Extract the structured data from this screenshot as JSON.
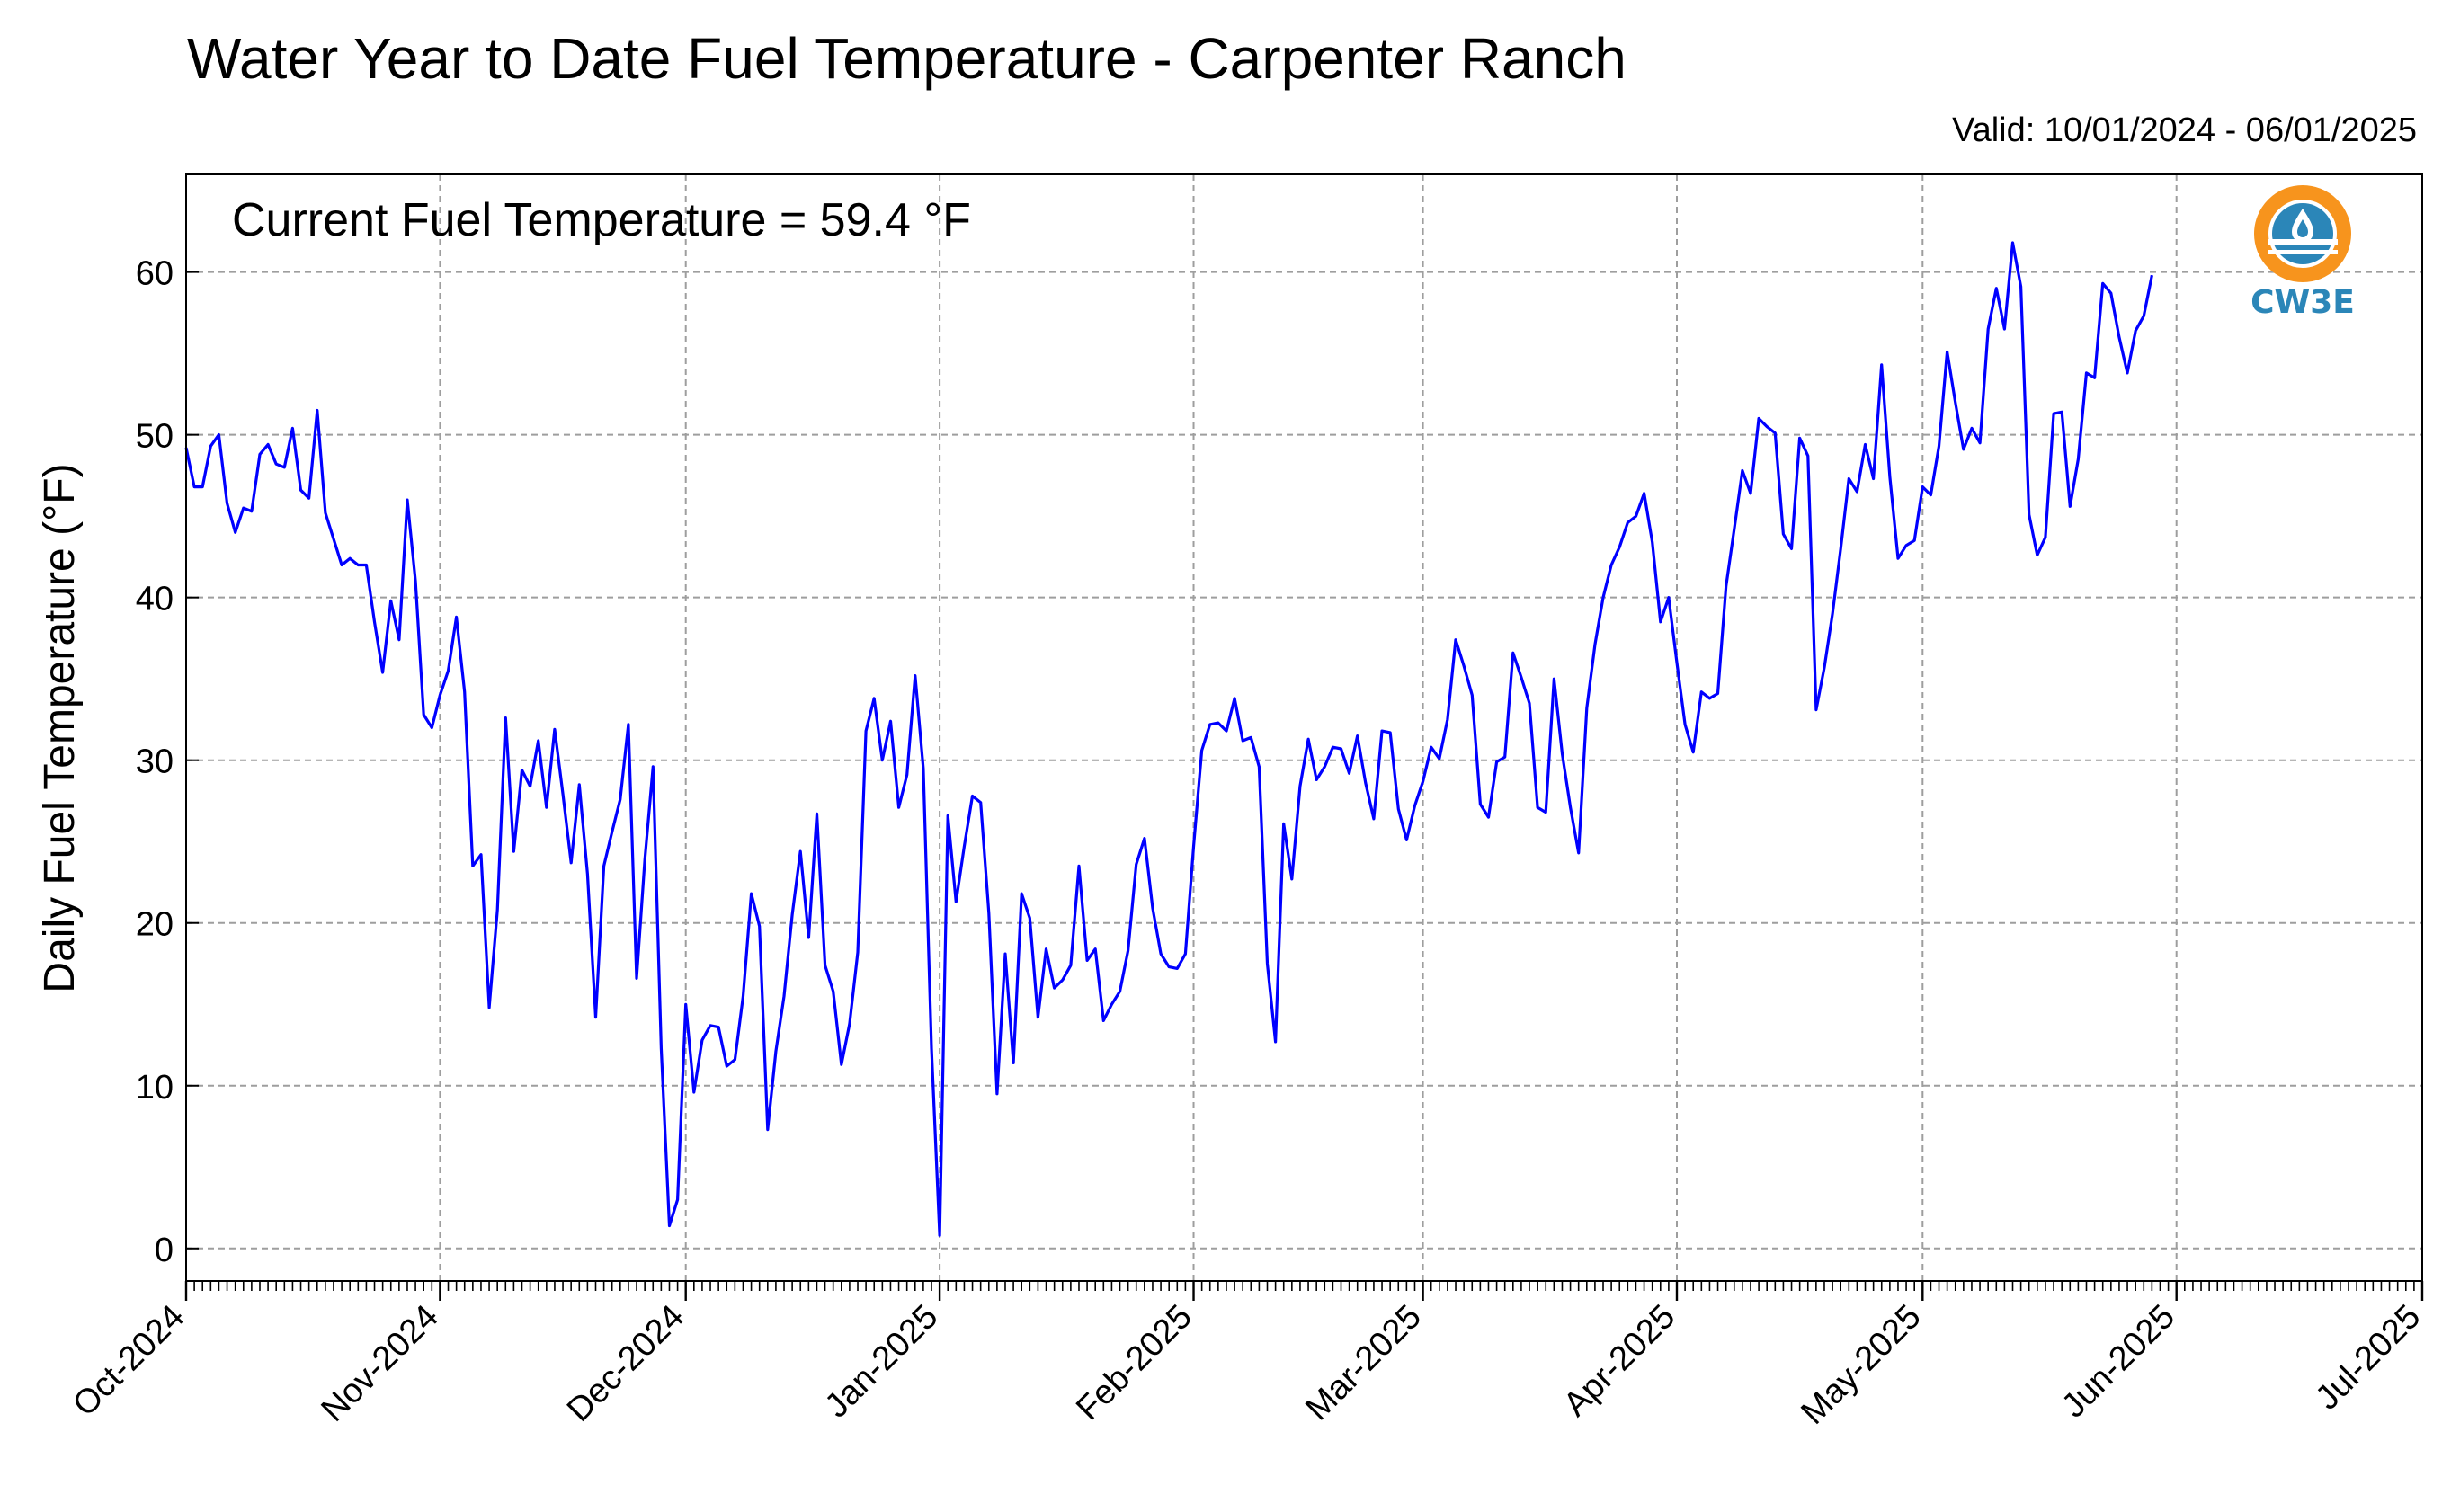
{
  "title": "Water Year to Date Fuel Temperature - Carpenter Ranch",
  "valid_label": "Valid: 10/01/2024 - 06/01/2025",
  "annotation": "Current Fuel Temperature = 59.4 °F",
  "logo": {
    "name": "cw3e-logo-icon",
    "text": "CW3E"
  },
  "colors": {
    "line": "#0000ff",
    "grid": "#9e9e9e",
    "logo_orange": "#f7941d",
    "logo_blue": "#2b86b8"
  },
  "chart_data": {
    "type": "line",
    "title": "Water Year to Date Fuel Temperature - Carpenter Ranch",
    "xlabel": "",
    "ylabel": "Daily Fuel Temperature (°F)",
    "xlim": [
      "2024-10-01",
      "2025-07-01"
    ],
    "ylim": [
      -2,
      66
    ],
    "yticks": [
      0,
      10,
      20,
      30,
      40,
      50,
      60
    ],
    "xticks": [
      {
        "date": "2024-10-01",
        "label": "Oct-2024"
      },
      {
        "date": "2024-11-01",
        "label": "Nov-2024"
      },
      {
        "date": "2024-12-01",
        "label": "Dec-2024"
      },
      {
        "date": "2025-01-01",
        "label": "Jan-2025"
      },
      {
        "date": "2025-02-01",
        "label": "Feb-2025"
      },
      {
        "date": "2025-03-01",
        "label": "Mar-2025"
      },
      {
        "date": "2025-04-01",
        "label": "Apr-2025"
      },
      {
        "date": "2025-05-01",
        "label": "May-2025"
      },
      {
        "date": "2025-06-01",
        "label": "Jun-2025"
      },
      {
        "date": "2025-07-01",
        "label": "Jul-2025"
      }
    ],
    "grid": true,
    "series": [
      {
        "start_date": "2024-10-01",
        "step": "1 day",
        "values": [
          49.2,
          46.8,
          46.8,
          49.3,
          50.0,
          45.8,
          44.0,
          45.5,
          45.3,
          48.8,
          49.4,
          48.2,
          48.0,
          50.4,
          46.6,
          46.1,
          51.5,
          45.2,
          43.6,
          42.0,
          42.4,
          42.0,
          42.0,
          38.5,
          35.4,
          39.8,
          37.4,
          46.0,
          41.0,
          32.8,
          32.0,
          34.0,
          35.5,
          38.8,
          34.2,
          23.5,
          24.2,
          14.8,
          20.8,
          32.6,
          24.4,
          29.4,
          28.4,
          31.2,
          27.1,
          31.9,
          27.9,
          23.7,
          28.5,
          23.0,
          14.2,
          23.5,
          25.6,
          27.6,
          32.2,
          16.6,
          23.9,
          29.6,
          12.3,
          1.4,
          3.0,
          15.0,
          9.6,
          12.8,
          13.7,
          13.6,
          11.2,
          11.6,
          15.5,
          21.8,
          19.8,
          7.3,
          12.1,
          15.5,
          20.5,
          24.4,
          19.1,
          26.7,
          17.4,
          15.8,
          11.3,
          13.8,
          18.2,
          31.8,
          33.8,
          30.0,
          32.4,
          27.1,
          29.1,
          35.2,
          29.5,
          12.3,
          0.8,
          26.6,
          21.3,
          24.7,
          27.8,
          27.4,
          20.6,
          9.5,
          18.1,
          11.4,
          21.8,
          20.3,
          14.2,
          18.4,
          16.0,
          16.5,
          17.4,
          23.5,
          17.7,
          18.4,
          14.0,
          15.0,
          15.8,
          18.3,
          23.6,
          25.2,
          20.9,
          18.1,
          17.3,
          17.2,
          18.1,
          24.7,
          30.6,
          32.2,
          32.3,
          31.8,
          33.8,
          31.2,
          31.4,
          29.6,
          17.5,
          12.7,
          26.1,
          22.7,
          28.4,
          31.3,
          28.8,
          29.6,
          30.8,
          30.7,
          29.2,
          31.5,
          28.6,
          26.4,
          31.8,
          31.7,
          27.0,
          25.1,
          27.2,
          28.7,
          30.8,
          30.1,
          32.5,
          37.4,
          35.8,
          34.0,
          27.3,
          26.5,
          29.9,
          30.2,
          36.6,
          35.1,
          33.5,
          27.1,
          26.8,
          35.0,
          30.4,
          27.1,
          24.3,
          33.2,
          37.1,
          40.0,
          42.0,
          43.1,
          44.6,
          45.0,
          46.4,
          43.4,
          38.5,
          40.0,
          36.0,
          32.2,
          30.5,
          34.2,
          33.8,
          34.1,
          40.7,
          44.2,
          47.8,
          46.4,
          51.0,
          50.5,
          50.1,
          43.9,
          43.0,
          49.8,
          48.7,
          33.1,
          35.7,
          39.0,
          43.0,
          47.3,
          46.5,
          49.4,
          47.3,
          54.3,
          47.4,
          42.4,
          43.2,
          43.5,
          46.8,
          46.3,
          49.3,
          55.1,
          52.0,
          49.1,
          50.4,
          49.5,
          56.5,
          59.0,
          56.5,
          61.8,
          59.1,
          45.1,
          42.6,
          43.7,
          51.3,
          51.4,
          45.6,
          48.5,
          53.8,
          53.5,
          59.3,
          58.7,
          56.0,
          53.8,
          56.4,
          57.3,
          59.8
        ]
      }
    ]
  }
}
